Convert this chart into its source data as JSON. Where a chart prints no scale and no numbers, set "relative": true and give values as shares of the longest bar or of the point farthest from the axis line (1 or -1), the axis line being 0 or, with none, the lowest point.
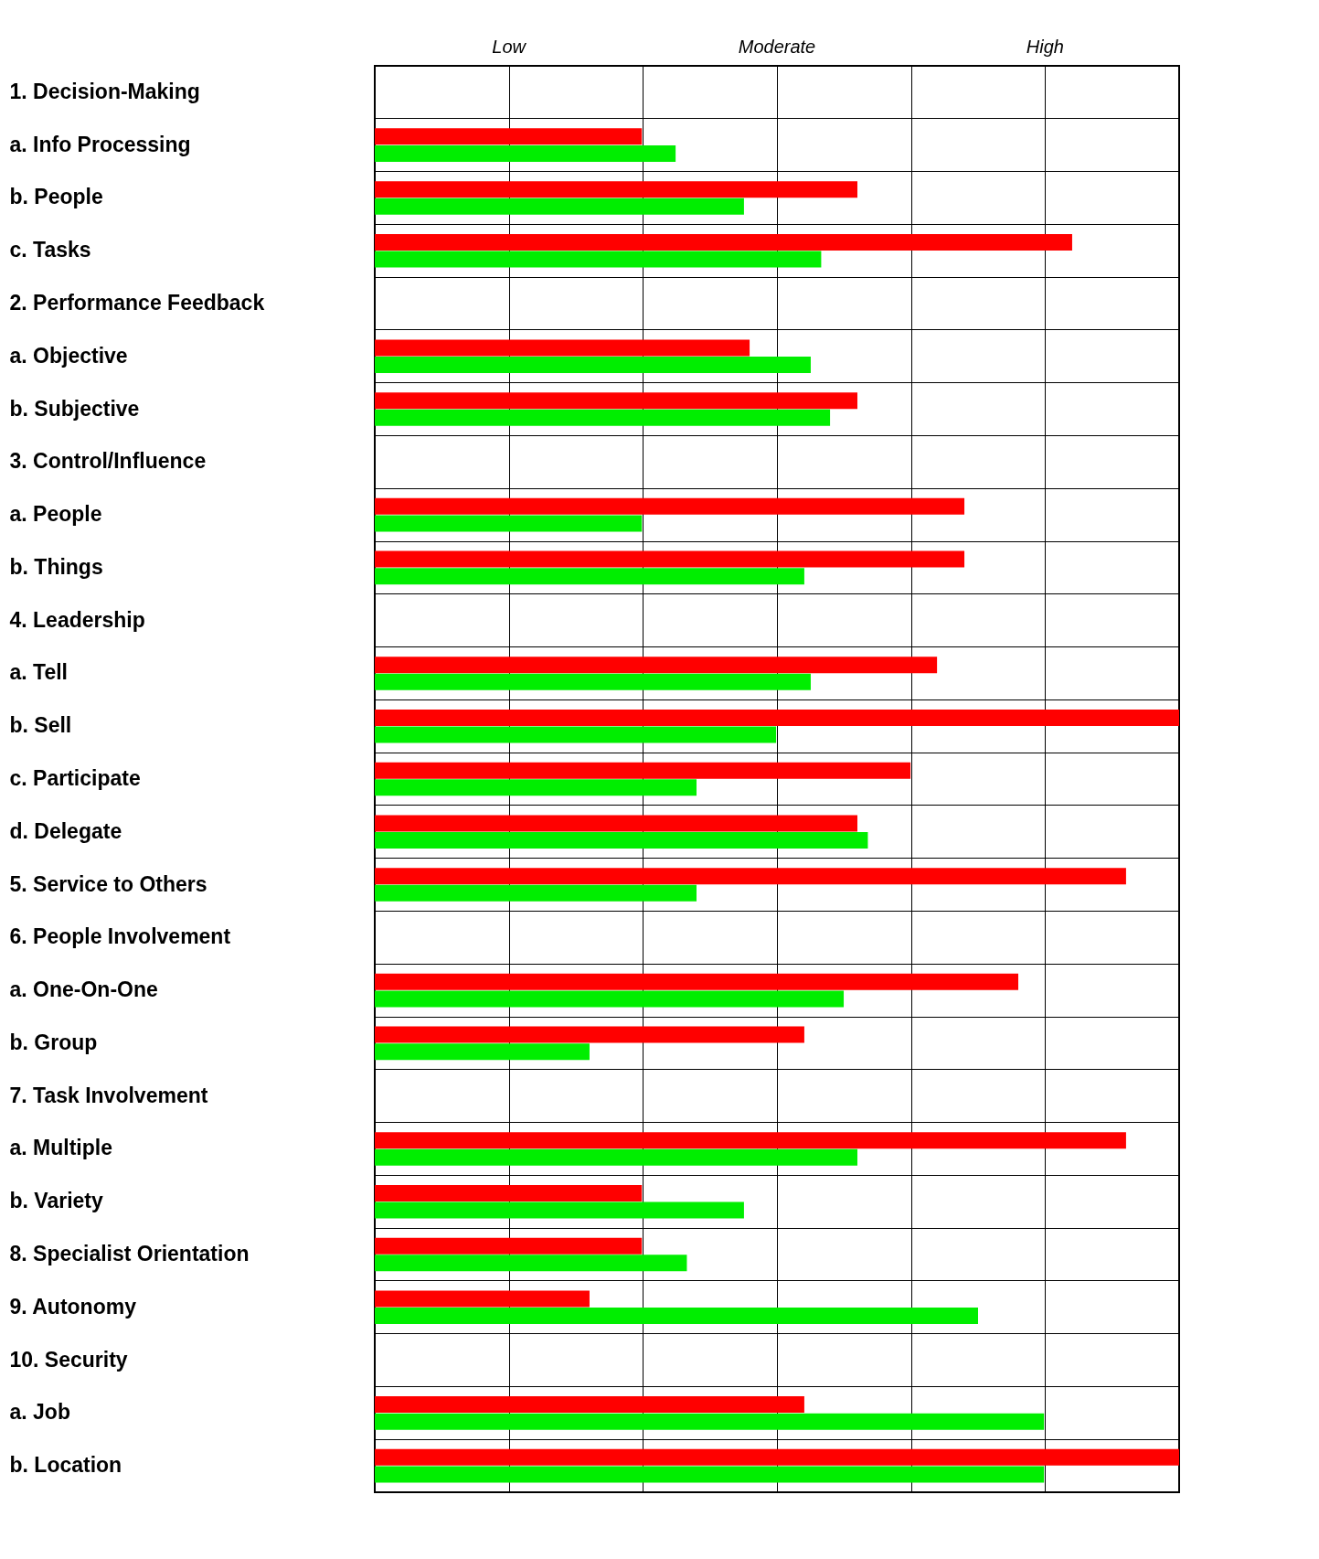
{
  "chart_data": {
    "type": "bar",
    "orientation": "horizontal",
    "relative": true,
    "grid": true,
    "annotations": [
      "Low",
      "Moderate",
      "High"
    ],
    "categories": [
      "1. Decision-Making",
      "a. Info Processing",
      "b. People",
      "c. Tasks",
      "2. Performance Feedback",
      "a. Objective",
      "b. Subjective",
      "3. Control/Influence",
      "a. People",
      "b. Things",
      "4. Leadership",
      "a. Tell",
      "b. Sell",
      "c. Participate",
      "d. Delegate",
      "5. Service to Others",
      "6. People Involvement",
      "a. One-On-One",
      "b. Group",
      "7. Task Involvement",
      "a. Multiple",
      "b. Variety",
      "8. Specialist Orientation",
      "9. Autonomy",
      "10. Security",
      "a. Job",
      "b. Location"
    ],
    "series": [
      {
        "color": "#ff0000",
        "values": [
          null,
          0.332,
          0.6,
          0.867,
          null,
          0.466,
          0.6,
          null,
          0.733,
          0.733,
          null,
          0.699,
          1,
          0.666,
          0.6,
          0.934,
          null,
          0.8,
          0.534,
          null,
          0.934,
          0.332,
          0.332,
          0.267,
          null,
          0.534,
          1
        ]
      },
      {
        "color": "#00ee00",
        "values": [
          null,
          0.374,
          0.459,
          0.555,
          null,
          0.542,
          0.566,
          null,
          0.332,
          0.534,
          null,
          0.542,
          0.499,
          0.4,
          0.613,
          0.4,
          null,
          0.583,
          0.267,
          null,
          0.6,
          0.459,
          0.388,
          0.75,
          null,
          0.832,
          0.832
        ]
      }
    ]
  }
}
